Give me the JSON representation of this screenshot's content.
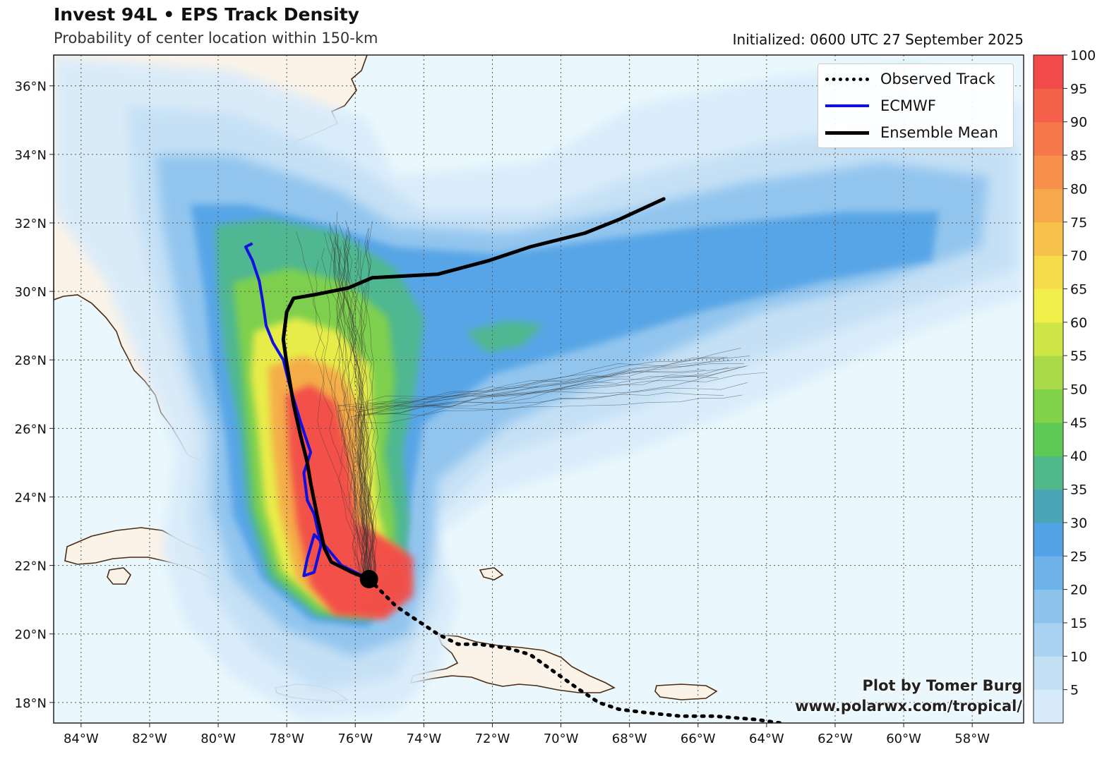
{
  "header": {
    "title": "Invest 94L • EPS Track Density",
    "subtitle": "Probability of center location within 150-km",
    "initialized": "Initialized: 0600 UTC 27 September 2025"
  },
  "credit": {
    "line1": "Plot by Tomer Burg",
    "line2": "www.polarwx.com/tropical/"
  },
  "legend": [
    {
      "label": "Observed Track",
      "color": "#000000",
      "style": "dotted"
    },
    {
      "label": "ECMWF",
      "color": "#1010e0",
      "style": "solid"
    },
    {
      "label": "Ensemble Mean",
      "color": "#000000",
      "style": "solid"
    }
  ],
  "axes": {
    "lon_labels": [
      "84°W",
      "82°W",
      "80°W",
      "78°W",
      "76°W",
      "74°W",
      "72°W",
      "70°W",
      "68°W",
      "66°W",
      "64°W",
      "62°W",
      "60°W",
      "58°W"
    ],
    "lon_values": [
      -84,
      -82,
      -80,
      -78,
      -76,
      -74,
      -72,
      -70,
      -68,
      -66,
      -64,
      -62,
      -60,
      -58
    ],
    "lat_labels": [
      "36°N",
      "34°N",
      "32°N",
      "30°N",
      "28°N",
      "26°N",
      "24°N",
      "22°N",
      "20°N",
      "18°N"
    ],
    "lat_values": [
      36,
      34,
      32,
      30,
      28,
      26,
      24,
      22,
      20,
      18
    ],
    "lon_range": [
      -84.8,
      -56.5
    ],
    "lat_range": [
      17.4,
      36.9
    ]
  },
  "colorbar": {
    "labels": [
      "5",
      "10",
      "15",
      "20",
      "25",
      "30",
      "35",
      "40",
      "45",
      "50",
      "55",
      "60",
      "65",
      "70",
      "75",
      "80",
      "85",
      "90",
      "95",
      "100"
    ],
    "levels": [
      0,
      5,
      10,
      15,
      20,
      25,
      30,
      35,
      40,
      45,
      50,
      55,
      60,
      65,
      70,
      75,
      80,
      85,
      90,
      95,
      100
    ],
    "colors": [
      "#d8ebfa",
      "#c4e0f5",
      "#a9d2f2",
      "#8ec3ee",
      "#6eb2ea",
      "#52a3e6",
      "#4aa6b6",
      "#4fb98a",
      "#5ec955",
      "#82d24a",
      "#a8db47",
      "#cee746",
      "#f1ef4a",
      "#f6dc4a",
      "#f6c24a",
      "#f6a84a",
      "#f6904a",
      "#f6784a",
      "#f5604a",
      "#f24a4a"
    ]
  },
  "colors": {
    "ocean": "#eaf8fd",
    "land": "#fbf3e8",
    "coast": "#4a2a10",
    "grid": "#666666"
  },
  "tracks": {
    "ensemble_mean": [
      [
        -75.6,
        21.6
      ],
      [
        -76.1,
        21.8
      ],
      [
        -76.7,
        22.1
      ],
      [
        -76.9,
        22.5
      ],
      [
        -77.1,
        23.4
      ],
      [
        -77.3,
        24.4
      ],
      [
        -77.4,
        25.0
      ],
      [
        -77.6,
        25.8
      ],
      [
        -77.8,
        26.7
      ],
      [
        -78.0,
        27.9
      ],
      [
        -78.1,
        28.6
      ],
      [
        -78.0,
        29.4
      ],
      [
        -77.8,
        29.8
      ],
      [
        -77.2,
        29.9
      ],
      [
        -76.2,
        30.1
      ],
      [
        -75.5,
        30.4
      ],
      [
        -73.6,
        30.5
      ],
      [
        -72.1,
        30.9
      ],
      [
        -70.9,
        31.3
      ],
      [
        -69.3,
        31.7
      ],
      [
        -68.3,
        32.1
      ],
      [
        -67.0,
        32.7
      ]
    ],
    "ecmwf": [
      [
        -75.6,
        21.6
      ],
      [
        -76.4,
        22.0
      ],
      [
        -76.9,
        22.6
      ],
      [
        -77.2,
        22.9
      ],
      [
        -77.4,
        22.2
      ],
      [
        -77.5,
        21.7
      ],
      [
        -77.2,
        21.8
      ],
      [
        -77.0,
        22.6
      ],
      [
        -77.2,
        23.5
      ],
      [
        -77.4,
        23.9
      ],
      [
        -77.5,
        24.7
      ],
      [
        -77.3,
        25.3
      ],
      [
        -77.6,
        26.2
      ],
      [
        -77.9,
        27.2
      ],
      [
        -78.1,
        28.0
      ],
      [
        -78.4,
        28.5
      ],
      [
        -78.6,
        29.0
      ],
      [
        -78.7,
        29.7
      ],
      [
        -78.8,
        30.3
      ],
      [
        -79.0,
        30.9
      ],
      [
        -79.2,
        31.3
      ],
      [
        -79.0,
        31.4
      ]
    ],
    "observed": [
      [
        -75.6,
        21.6
      ],
      [
        -75.2,
        21.2
      ],
      [
        -74.8,
        20.8
      ],
      [
        -74.2,
        20.4
      ],
      [
        -73.6,
        20.0
      ],
      [
        -73.0,
        19.7
      ],
      [
        -72.4,
        19.7
      ],
      [
        -71.6,
        19.6
      ],
      [
        -70.9,
        19.4
      ],
      [
        -70.2,
        18.9
      ],
      [
        -69.5,
        18.4
      ],
      [
        -68.9,
        18.0
      ],
      [
        -68.3,
        17.8
      ],
      [
        -67.5,
        17.7
      ],
      [
        -66.5,
        17.6
      ],
      [
        -65.5,
        17.6
      ],
      [
        -64.3,
        17.5
      ],
      [
        -63.6,
        17.4
      ]
    ],
    "storm_position": [
      -75.6,
      21.6
    ]
  }
}
